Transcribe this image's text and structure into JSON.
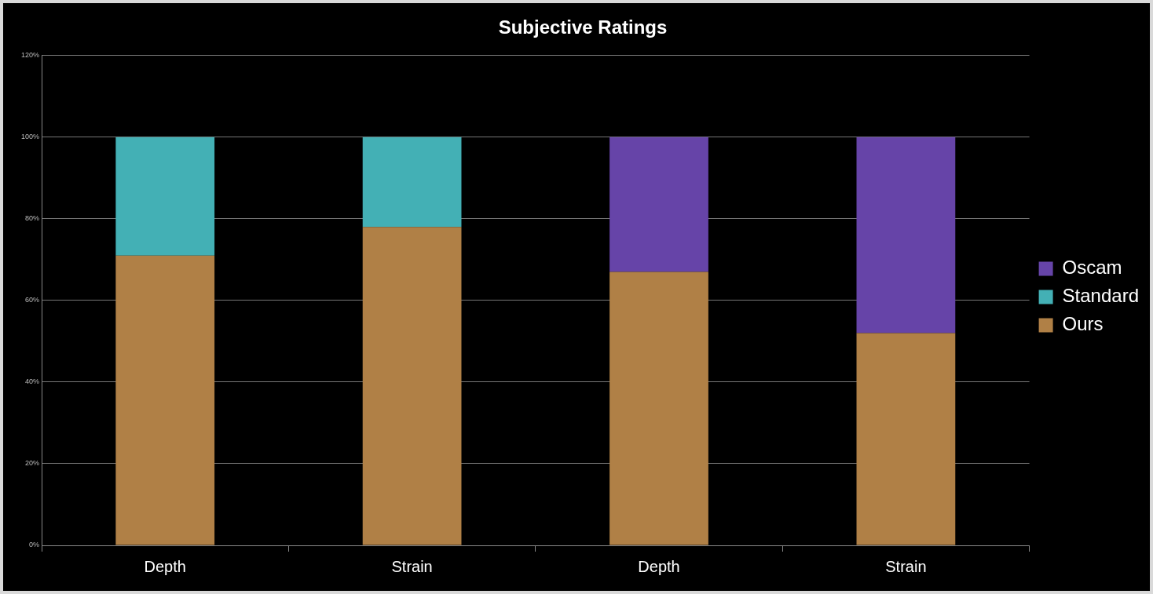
{
  "chart_data": {
    "type": "bar",
    "title": "Subjective Ratings",
    "stacked": true,
    "categories": [
      "Depth",
      "Strain",
      "Depth",
      "Strain"
    ],
    "series": [
      {
        "name": "Ours",
        "color": "#b08046",
        "values": [
          71,
          78,
          67,
          52
        ]
      },
      {
        "name": "Standard",
        "color": "#43b0b5",
        "values": [
          29,
          22,
          null,
          null
        ]
      },
      {
        "name": "Oscam",
        "color": "#6644a8",
        "values": [
          null,
          null,
          33,
          48
        ]
      }
    ],
    "ylim": [
      0,
      120
    ],
    "yticks": [
      {
        "value": 0,
        "label": "0%"
      },
      {
        "value": 20,
        "label": "20%"
      },
      {
        "value": 40,
        "label": "40%"
      },
      {
        "value": 60,
        "label": "60%"
      },
      {
        "value": 80,
        "label": "80%"
      },
      {
        "value": 100,
        "label": "100%"
      },
      {
        "value": 120,
        "label": "120%"
      }
    ],
    "grid": "y",
    "legend": "right"
  }
}
